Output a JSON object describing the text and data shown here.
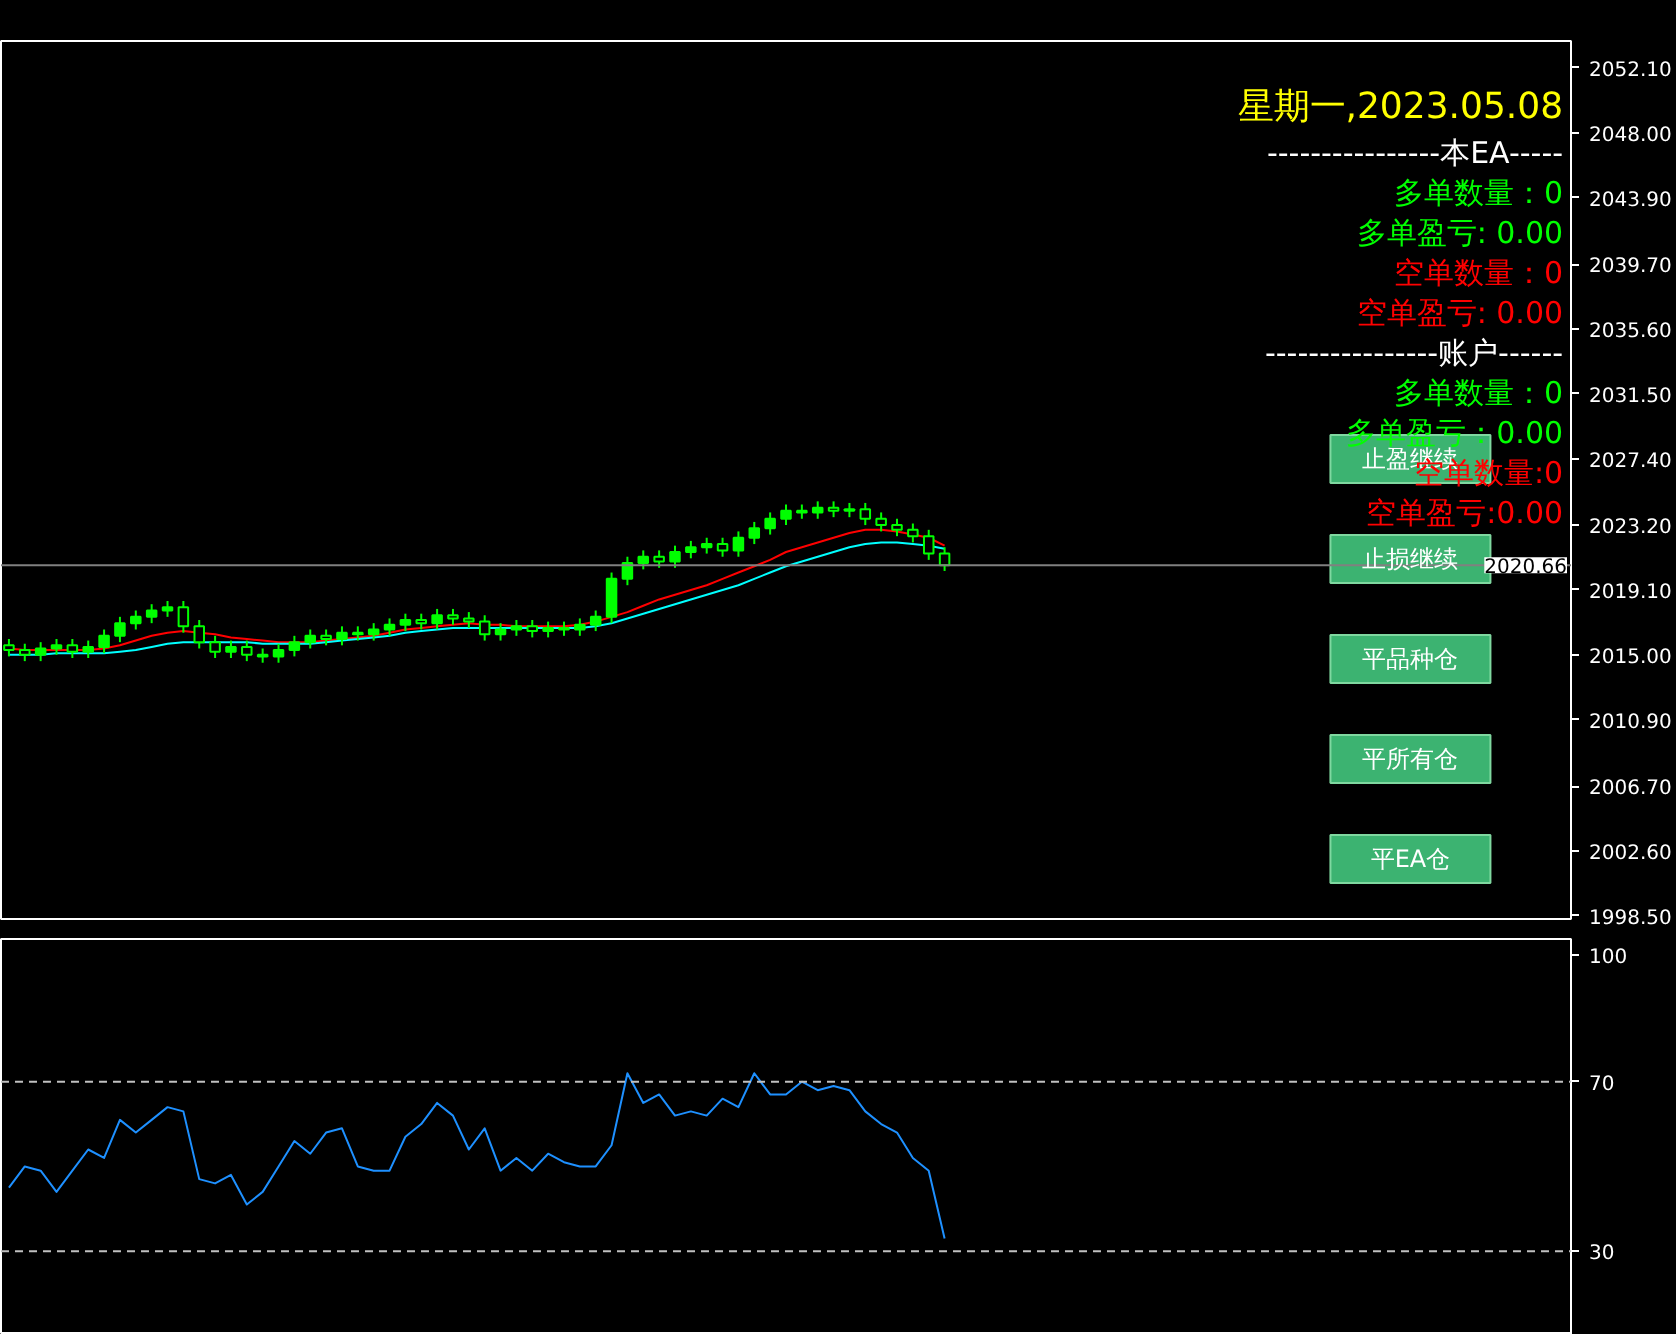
{
  "chart_data": [
    {
      "type": "candlestick",
      "color": "#00ff00",
      "categories": [
        null,
        null,
        null,
        null,
        null,
        null,
        null,
        null,
        null,
        null,
        null,
        null,
        null,
        null,
        null,
        null,
        null,
        null,
        null,
        null,
        null,
        null,
        null,
        null,
        null,
        null,
        null,
        null,
        null,
        null,
        null,
        null,
        null,
        null,
        null,
        null,
        null,
        null,
        null,
        null,
        null,
        null,
        null,
        null,
        null,
        null,
        null,
        null,
        null,
        null,
        null,
        null,
        null,
        null,
        null,
        null,
        null,
        null,
        null,
        null
      ],
      "ohlc": [
        [
          2015.6,
          2016.0,
          2014.9,
          2015.3
        ],
        [
          2015.3,
          2015.7,
          2014.6,
          2015.0
        ],
        [
          2015.0,
          2015.8,
          2014.6,
          2015.4
        ],
        [
          2015.4,
          2016.0,
          2015.0,
          2015.6
        ],
        [
          2015.6,
          2016.0,
          2014.8,
          2015.2
        ],
        [
          2015.2,
          2015.9,
          2014.8,
          2015.5
        ],
        [
          2015.5,
          2016.6,
          2015.1,
          2016.2
        ],
        [
          2016.2,
          2017.4,
          2015.8,
          2017.0
        ],
        [
          2017.0,
          2017.8,
          2016.6,
          2017.4
        ],
        [
          2017.4,
          2018.2,
          2017.0,
          2017.8
        ],
        [
          2017.8,
          2018.4,
          2017.4,
          2018.0
        ],
        [
          2018.0,
          2018.4,
          2016.4,
          2016.8
        ],
        [
          2016.8,
          2017.2,
          2015.4,
          2015.8
        ],
        [
          2015.8,
          2016.2,
          2014.8,
          2015.2
        ],
        [
          2015.2,
          2015.9,
          2014.8,
          2015.5
        ],
        [
          2015.5,
          2015.9,
          2014.6,
          2015.0
        ],
        [
          2015.0,
          2015.4,
          2014.5,
          2014.9
        ],
        [
          2014.9,
          2015.7,
          2014.5,
          2015.3
        ],
        [
          2015.3,
          2016.2,
          2014.9,
          2015.8
        ],
        [
          2015.8,
          2016.6,
          2015.4,
          2016.2
        ],
        [
          2016.2,
          2016.6,
          2015.6,
          2016.0
        ],
        [
          2016.0,
          2016.8,
          2015.6,
          2016.4
        ],
        [
          2016.4,
          2016.8,
          2015.9,
          2016.3
        ],
        [
          2016.3,
          2017.0,
          2015.9,
          2016.6
        ],
        [
          2016.6,
          2017.3,
          2016.2,
          2016.9
        ],
        [
          2016.9,
          2017.6,
          2016.5,
          2017.2
        ],
        [
          2017.2,
          2017.6,
          2016.6,
          2017.0
        ],
        [
          2017.0,
          2017.9,
          2016.6,
          2017.5
        ],
        [
          2017.5,
          2017.9,
          2016.9,
          2017.3
        ],
        [
          2017.3,
          2017.7,
          2016.7,
          2017.1
        ],
        [
          2017.1,
          2017.5,
          2015.9,
          2016.3
        ],
        [
          2016.3,
          2017.0,
          2015.9,
          2016.6
        ],
        [
          2016.6,
          2017.2,
          2016.2,
          2016.8
        ],
        [
          2016.8,
          2017.2,
          2016.1,
          2016.5
        ],
        [
          2016.5,
          2017.1,
          2016.1,
          2016.7
        ],
        [
          2016.7,
          2017.1,
          2016.2,
          2016.6
        ],
        [
          2016.6,
          2017.3,
          2016.2,
          2016.9
        ],
        [
          2016.9,
          2017.8,
          2016.5,
          2017.4
        ],
        [
          2017.4,
          2020.2,
          2017.0,
          2019.8
        ],
        [
          2019.8,
          2021.2,
          2019.4,
          2020.8
        ],
        [
          2020.8,
          2021.6,
          2020.4,
          2021.2
        ],
        [
          2021.2,
          2021.6,
          2020.5,
          2020.9
        ],
        [
          2020.9,
          2021.9,
          2020.5,
          2021.5
        ],
        [
          2021.5,
          2022.2,
          2021.1,
          2021.8
        ],
        [
          2021.8,
          2022.4,
          2021.4,
          2022.0
        ],
        [
          2022.0,
          2022.4,
          2021.2,
          2021.6
        ],
        [
          2021.6,
          2022.8,
          2021.2,
          2022.4
        ],
        [
          2022.4,
          2023.4,
          2022.0,
          2023.0
        ],
        [
          2023.0,
          2024.0,
          2022.6,
          2023.6
        ],
        [
          2023.6,
          2024.5,
          2023.2,
          2024.1
        ],
        [
          2024.1,
          2024.5,
          2023.6,
          2024.0
        ],
        [
          2024.0,
          2024.7,
          2023.6,
          2024.3
        ],
        [
          2024.3,
          2024.7,
          2023.7,
          2024.1
        ],
        [
          2024.1,
          2024.6,
          2023.7,
          2024.2
        ],
        [
          2024.2,
          2024.6,
          2023.2,
          2023.6
        ],
        [
          2023.6,
          2024.0,
          2022.8,
          2023.2
        ],
        [
          2023.2,
          2023.6,
          2022.5,
          2022.9
        ],
        [
          2022.9,
          2023.3,
          2022.1,
          2022.5
        ],
        [
          2022.5,
          2022.9,
          2021.0,
          2021.4
        ],
        [
          2021.4,
          2021.8,
          2020.3,
          2020.66
        ]
      ],
      "series": [
        {
          "type": "line",
          "color": "#ff0000",
          "values": [
            2015.4,
            2015.3,
            2015.3,
            2015.3,
            2015.3,
            2015.3,
            2015.4,
            2015.6,
            2015.9,
            2016.2,
            2016.4,
            2016.5,
            2016.4,
            2016.3,
            2016.1,
            2016.0,
            2015.9,
            2015.8,
            2015.8,
            2015.8,
            2015.9,
            2016.0,
            2016.1,
            2016.2,
            2016.4,
            2016.6,
            2016.7,
            2016.8,
            2016.9,
            2017.0,
            2016.9,
            2016.9,
            2016.8,
            2016.8,
            2016.8,
            2016.8,
            2016.9,
            2017.1,
            2017.4,
            2017.7,
            2018.1,
            2018.5,
            2018.8,
            2019.1,
            2019.4,
            2019.8,
            2020.2,
            2020.6,
            2021.0,
            2021.5,
            2021.8,
            2022.1,
            2022.4,
            2022.7,
            2022.9,
            2022.9,
            2022.8,
            2022.6,
            2022.4,
            2021.9
          ]
        },
        {
          "type": "line",
          "color": "#00ffff",
          "values": [
            2015.0,
            2015.0,
            2015.0,
            2015.1,
            2015.1,
            2015.1,
            2015.1,
            2015.2,
            2015.3,
            2015.5,
            2015.7,
            2015.8,
            2015.8,
            2015.8,
            2015.8,
            2015.8,
            2015.7,
            2015.7,
            2015.7,
            2015.7,
            2015.8,
            2015.9,
            2016.0,
            2016.1,
            2016.2,
            2016.4,
            2016.5,
            2016.6,
            2016.7,
            2016.7,
            2016.7,
            2016.7,
            2016.7,
            2016.7,
            2016.7,
            2016.7,
            2016.7,
            2016.8,
            2017.0,
            2017.3,
            2017.6,
            2017.9,
            2018.2,
            2018.5,
            2018.8,
            2019.1,
            2019.4,
            2019.8,
            2020.2,
            2020.6,
            2020.9,
            2021.2,
            2021.5,
            2021.8,
            2022.0,
            2022.1,
            2022.1,
            2022.0,
            2021.9,
            2021.7
          ]
        }
      ],
      "ylim": [
        1998.3,
        2053.8
      ],
      "yticks": [
        {
          "value": 2052.1,
          "label": "2052.10"
        },
        {
          "value": 2048.0,
          "label": "2048.00"
        },
        {
          "value": 2043.9,
          "label": "2043.90"
        },
        {
          "value": 2039.7,
          "label": "2039.70"
        },
        {
          "value": 2035.6,
          "label": "2035.60"
        },
        {
          "value": 2031.5,
          "label": "2031.50"
        },
        {
          "value": 2027.4,
          "label": "2027.40"
        },
        {
          "value": 2023.2,
          "label": "2023.20"
        },
        {
          "value": 2019.1,
          "label": "2019.10"
        },
        {
          "value": 2015.0,
          "label": "2015.00"
        },
        {
          "value": 2010.9,
          "label": "2010.90"
        },
        {
          "value": 2006.7,
          "label": "2006.70"
        },
        {
          "value": 2002.6,
          "label": "2002.60"
        },
        {
          "value": 1998.5,
          "label": "1998.50"
        }
      ],
      "tick_labels": "y",
      "ref_lines": [
        {
          "axis": "y",
          "value": 2020.66,
          "label": "2020.66",
          "color": "#808080"
        }
      ],
      "annotations": [
        "星期一,2023.05.08",
        "----------------本EA-----",
        "多单数量：0",
        "多单盈亏: 0.00",
        "空单数量：0",
        "空单盈亏: 0.00",
        "----------------账户------",
        "多单数量：0",
        "多单盈亏：0.00",
        "空单数量:0",
        "空单盈亏:0.00",
        "止盈继续",
        "止损继续",
        "平品种仓",
        "平所有仓",
        "平EA仓"
      ]
    },
    {
      "type": "line",
      "color": "#1e90ff",
      "categories": [
        null,
        null,
        null,
        null,
        null,
        null,
        null,
        null,
        null,
        null,
        null,
        null,
        null,
        null,
        null,
        null,
        null,
        null,
        null,
        null,
        null,
        null,
        null,
        null,
        null,
        null,
        null,
        null,
        null,
        null,
        null,
        null,
        null,
        null,
        null,
        null,
        null,
        null,
        null,
        null,
        null,
        null,
        null,
        null,
        null,
        null,
        null,
        null,
        null,
        null,
        null,
        null,
        null,
        null,
        null,
        null,
        null,
        null,
        null,
        null
      ],
      "values": [
        45,
        50,
        49,
        44,
        49,
        54,
        52,
        61,
        58,
        61,
        64,
        63,
        47,
        46,
        48,
        41,
        44,
        50,
        56,
        53,
        58,
        59,
        50,
        49,
        49,
        57,
        60,
        65,
        62,
        54,
        59,
        49,
        52,
        49,
        53,
        51,
        50,
        50,
        55,
        72,
        65,
        67,
        62,
        63,
        62,
        66,
        64,
        72,
        67,
        67,
        70,
        68,
        69,
        68,
        63,
        60,
        58,
        52,
        49,
        33
      ],
      "ylim": [
        10.2,
        103.7
      ],
      "yticks": [
        100,
        70,
        30
      ],
      "tick_labels": "y",
      "ref_lines": [
        {
          "axis": "y",
          "value": 70,
          "label": null,
          "color": "#c0c0c0",
          "line_style": "dashed"
        },
        {
          "axis": "y",
          "value": 30,
          "label": null,
          "color": "#c0c0c0",
          "line_style": "dashed"
        }
      ]
    }
  ]
}
